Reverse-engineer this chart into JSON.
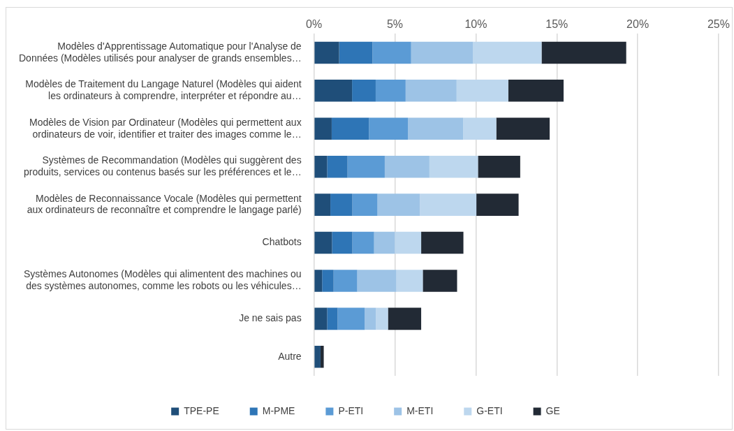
{
  "chart_data": {
    "type": "bar",
    "orientation": "horizontal",
    "stacked": true,
    "categories": [
      "Modèles d'Apprentissage Automatique pour l'Analyse de\nDonnées (Modèles utilisés pour analyser de grands ensembles…",
      "Modèles de Traitement du Langage Naturel (Modèles qui aident\nles ordinateurs à comprendre, interpréter et répondre au…",
      "Modèles de Vision par Ordinateur (Modèles qui permettent aux\nordinateurs de voir, identifier et traiter des images comme le…",
      "Systèmes de Recommandation (Modèles qui suggèrent des\nproduits, services ou contenus basés sur les préférences et le…",
      "Modèles de Reconnaissance Vocale (Modèles qui permettent\naux ordinateurs de reconnaître et comprendre le langage parlé)",
      "Chatbots",
      "Systèmes Autonomes (Modèles qui alimentent des machines ou\ndes systèmes autonomes, comme les robots ou les véhicules…",
      "Je ne sais pas",
      "Autre"
    ],
    "series": [
      {
        "name": "TPE-PE",
        "color": "#1f4e79",
        "values": [
          1.55,
          2.35,
          1.09,
          0.81,
          1.01,
          1.11,
          0.5,
          0.81,
          0.4
        ]
      },
      {
        "name": "M-PME",
        "color": "#2e75b6",
        "values": [
          2.06,
          1.46,
          2.31,
          1.26,
          1.36,
          1.26,
          0.71,
          0.65,
          0
        ]
      },
      {
        "name": "P-ETI",
        "color": "#5b9bd5",
        "values": [
          2.39,
          1.85,
          2.4,
          2.3,
          1.55,
          1.34,
          1.46,
          1.67,
          0
        ]
      },
      {
        "name": "M-ETI",
        "color": "#9dc3e6",
        "values": [
          3.81,
          3.15,
          3.42,
          2.76,
          2.62,
          1.28,
          2.42,
          0.7,
          0
        ]
      },
      {
        "name": "G-ETI",
        "color": "#bdd7ee",
        "values": [
          4.25,
          3.19,
          2.04,
          3.0,
          3.49,
          1.63,
          1.63,
          0.74,
          0
        ]
      },
      {
        "name": "GE",
        "color": "#222a35",
        "values": [
          5.23,
          3.42,
          3.3,
          2.61,
          2.61,
          2.61,
          2.12,
          2.05,
          0.2
        ]
      }
    ],
    "xlim": [
      0,
      25
    ],
    "xticks": [
      {
        "value": 0,
        "label": "0%"
      },
      {
        "value": 5,
        "label": "5%"
      },
      {
        "value": 10,
        "label": "10%"
      },
      {
        "value": 15,
        "label": "15%"
      },
      {
        "value": 20,
        "label": "20%"
      },
      {
        "value": 25,
        "label": "25%"
      }
    ],
    "grid": "x",
    "legend": "bottom"
  }
}
